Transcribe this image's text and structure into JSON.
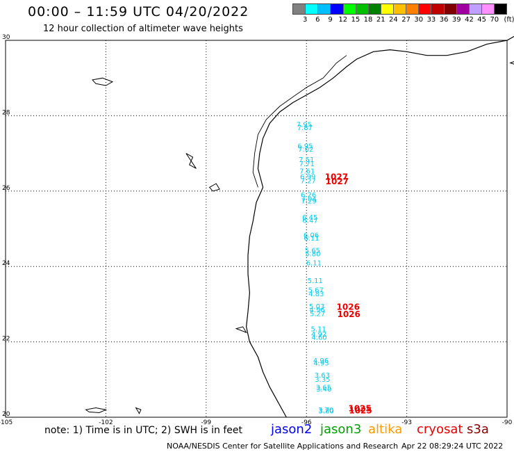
{
  "header": {
    "title": "00:00 – 11:59 UTC 04/20/2022",
    "subtitle": "12 hour collection of altimeter wave heights"
  },
  "legend": {
    "labels": [
      "3",
      "6",
      "9",
      "12",
      "15",
      "18",
      "21",
      "24",
      "27",
      "30",
      "33",
      "36",
      "39",
      "42",
      "45",
      "70"
    ],
    "unit": "(ft)",
    "colors": [
      "#808080",
      "#00ffff",
      "#00bfff",
      "#0000ff",
      "#00ff00",
      "#00c000",
      "#008000",
      "#ffff00",
      "#ffc000",
      "#ff8000",
      "#ff0000",
      "#c00000",
      "#800000",
      "#a000a0",
      "#c0a0ff",
      "#ff90ff",
      "#000000"
    ]
  },
  "map": {
    "lon_ticks": [
      "-105",
      "-102",
      "-99",
      "-96",
      "-93",
      "-90"
    ],
    "lat_ticks": [
      "30",
      "28",
      "26",
      "24",
      "22",
      "20"
    ],
    "lon_range": [
      -105,
      -90
    ],
    "lat_range": [
      20,
      30
    ],
    "grid_color": "#000000",
    "swh_color": "#00ccee",
    "pressure_color": "#ee0000",
    "swh_labels": [
      {
        "text": "7.95",
        "lon": -96.3,
        "lat": 27.7
      },
      {
        "text": "7.87",
        "lon": -96.28,
        "lat": 27.62
      },
      {
        "text": "6.95",
        "lon": -96.27,
        "lat": 27.13
      },
      {
        "text": "7.02",
        "lon": -96.25,
        "lat": 27.05
      },
      {
        "text": "7.51",
        "lon": -96.23,
        "lat": 26.77
      },
      {
        "text": "7.71",
        "lon": -96.22,
        "lat": 26.66
      },
      {
        "text": "7.61",
        "lon": -96.21,
        "lat": 26.47
      },
      {
        "text": "6.99",
        "lon": -96.19,
        "lat": 26.32
      },
      {
        "text": "7.27",
        "lon": -96.18,
        "lat": 26.21
      },
      {
        "text": "6.26",
        "lon": -96.17,
        "lat": 25.84
      },
      {
        "text": "7.04",
        "lon": -96.16,
        "lat": 25.73
      },
      {
        "text": "7.29",
        "lon": -96.16,
        "lat": 25.67
      },
      {
        "text": "6.45",
        "lon": -96.13,
        "lat": 25.24
      },
      {
        "text": "6.47",
        "lon": -96.12,
        "lat": 25.16
      },
      {
        "text": "6.06",
        "lon": -96.09,
        "lat": 24.77
      },
      {
        "text": "6.11",
        "lon": -96.08,
        "lat": 24.69
      },
      {
        "text": "5.65",
        "lon": -96.05,
        "lat": 24.36
      },
      {
        "text": "5.80",
        "lon": -96.04,
        "lat": 24.27
      },
      {
        "text": "6.11",
        "lon": -96.01,
        "lat": 24.03
      },
      {
        "text": "5.11",
        "lon": -95.97,
        "lat": 23.56
      },
      {
        "text": "5.67",
        "lon": -95.95,
        "lat": 23.31
      },
      {
        "text": "4.83",
        "lon": -95.94,
        "lat": 23.21
      },
      {
        "text": "5.03",
        "lon": -95.92,
        "lat": 22.88
      },
      {
        "text": "4.96",
        "lon": -95.91,
        "lat": 22.79
      },
      {
        "text": "5.27",
        "lon": -95.9,
        "lat": 22.68
      },
      {
        "text": "5.11",
        "lon": -95.87,
        "lat": 22.28
      },
      {
        "text": "4.92",
        "lon": -95.86,
        "lat": 22.14
      },
      {
        "text": "4.60",
        "lon": -95.85,
        "lat": 22.06
      },
      {
        "text": "4.96",
        "lon": -95.8,
        "lat": 21.44
      },
      {
        "text": "4.93",
        "lon": -95.79,
        "lat": 21.37
      },
      {
        "text": "3.63",
        "lon": -95.76,
        "lat": 21.05
      },
      {
        "text": "3.35",
        "lon": -95.75,
        "lat": 20.94
      },
      {
        "text": "3.65",
        "lon": -95.72,
        "lat": 20.73
      },
      {
        "text": "3.40",
        "lon": -95.71,
        "lat": 20.68
      },
      {
        "text": "3.70",
        "lon": -95.65,
        "lat": 20.13
      },
      {
        "text": "3.80",
        "lon": -95.64,
        "lat": 20.1
      }
    ],
    "pressure_labels": [
      {
        "text": "1027",
        "lon": -95.45,
        "lat": 26.3
      },
      {
        "text": "1027",
        "lon": -95.43,
        "lat": 26.18
      },
      {
        "text": "1026",
        "lon": -95.1,
        "lat": 22.85
      },
      {
        "text": "1026",
        "lon": -95.08,
        "lat": 22.66
      },
      {
        "text": "1025",
        "lon": -94.75,
        "lat": 20.16
      },
      {
        "text": "1025",
        "lon": -94.73,
        "lat": 20.1
      }
    ],
    "coast_main": [
      [
        -89.2,
        29.9
      ],
      [
        -89.6,
        30.2
      ],
      [
        -90.0,
        30.0
      ],
      [
        -90.6,
        29.9
      ],
      [
        -91.2,
        29.7
      ],
      [
        -91.8,
        29.6
      ],
      [
        -92.4,
        29.6
      ],
      [
        -93.0,
        29.7
      ],
      [
        -93.5,
        29.75
      ],
      [
        -94.0,
        29.7
      ],
      [
        -94.5,
        29.5
      ],
      [
        -94.8,
        29.3
      ],
      [
        -95.2,
        29.0
      ],
      [
        -95.6,
        28.75
      ],
      [
        -96.0,
        28.55
      ],
      [
        -96.4,
        28.35
      ],
      [
        -96.8,
        28.1
      ],
      [
        -97.1,
        27.8
      ],
      [
        -97.3,
        27.4
      ],
      [
        -97.4,
        27.0
      ],
      [
        -97.45,
        26.6
      ],
      [
        -97.3,
        26.1
      ],
      [
        -97.5,
        25.7
      ],
      [
        -97.6,
        25.2
      ],
      [
        -97.7,
        24.8
      ],
      [
        -97.75,
        24.3
      ],
      [
        -97.75,
        23.8
      ],
      [
        -97.7,
        23.3
      ],
      [
        -97.75,
        22.8
      ],
      [
        -97.8,
        22.4
      ],
      [
        -97.7,
        22.0
      ],
      [
        -97.45,
        21.6
      ],
      [
        -97.3,
        21.2
      ],
      [
        -97.1,
        20.8
      ],
      [
        -96.85,
        20.4
      ],
      [
        -96.6,
        20.0
      ]
    ],
    "coast_inner": [
      [
        -94.8,
        29.6
      ],
      [
        -95.1,
        29.4
      ],
      [
        -95.5,
        29.0
      ],
      [
        -96.0,
        28.75
      ],
      [
        -96.4,
        28.5
      ],
      [
        -96.8,
        28.25
      ],
      [
        -97.2,
        27.9
      ],
      [
        -97.45,
        27.5
      ],
      [
        -97.55,
        27.0
      ],
      [
        -97.6,
        26.5
      ],
      [
        -97.45,
        26.1
      ]
    ],
    "islands": [
      [
        [
          -102.4,
          28.95
        ],
        [
          -102.1,
          29.0
        ],
        [
          -101.8,
          28.9
        ],
        [
          -102.0,
          28.8
        ],
        [
          -102.3,
          28.85
        ]
      ],
      [
        [
          -98.9,
          26.1
        ],
        [
          -98.7,
          26.2
        ],
        [
          -98.6,
          26.05
        ],
        [
          -98.8,
          26.0
        ]
      ],
      [
        [
          -99.6,
          27.0
        ],
        [
          -99.4,
          26.9
        ],
        [
          -99.5,
          26.7
        ],
        [
          -99.3,
          26.6
        ]
      ],
      [
        [
          -102.6,
          20.2
        ],
        [
          -102.3,
          20.25
        ],
        [
          -102.0,
          20.2
        ],
        [
          -102.2,
          20.12
        ],
        [
          -102.5,
          20.14
        ]
      ],
      [
        [
          -101.1,
          20.25
        ],
        [
          -100.95,
          20.2
        ],
        [
          -101.0,
          20.1
        ]
      ],
      [
        [
          -98.1,
          22.35
        ],
        [
          -97.9,
          22.4
        ],
        [
          -97.8,
          22.25
        ]
      ],
      [
        [
          -89.9,
          29.4
        ],
        [
          -89.6,
          29.5
        ],
        [
          -89.4,
          29.3
        ],
        [
          -89.2,
          29.2
        ]
      ]
    ]
  },
  "notes": {
    "note": "note: 1) Time is in UTC; 2) SWH is in feet",
    "satellites": [
      {
        "name": "jason2",
        "color": "#0000ff"
      },
      {
        "name": "jason3",
        "color": "#00a000"
      },
      {
        "name": "altika",
        "color": "#ff9900"
      },
      {
        "name": "cryosat",
        "color": "#ee0000"
      },
      {
        "name": "s3a",
        "color": "#8b0000"
      }
    ]
  },
  "footer": {
    "credit": "NOAA/NESDIS Center for Satellite Applications and Research",
    "timestamp": "Apr 22 08:29:24 UTC 2022"
  }
}
